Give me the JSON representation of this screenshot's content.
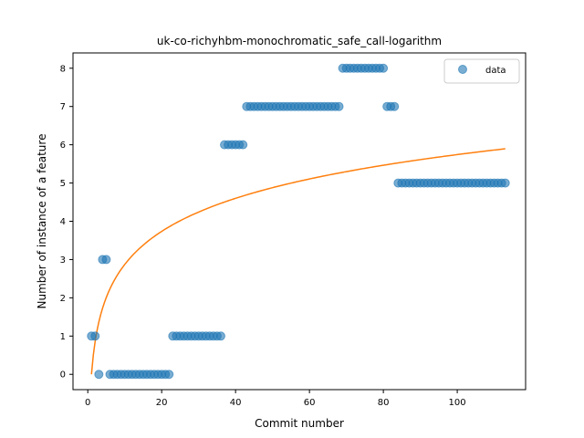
{
  "chart_data": {
    "type": "scatter",
    "title": "uk-co-richyhbm-monochromatic_safe_call-logarithm",
    "xlabel": "Commit number",
    "ylabel": "Number of instance of a feature",
    "xlim": [
      -4,
      118.5
    ],
    "ylim": [
      -0.4,
      8.4
    ],
    "xticks": [
      0,
      20,
      40,
      60,
      80,
      100
    ],
    "yticks": [
      0,
      1,
      2,
      3,
      4,
      5,
      6,
      7,
      8
    ],
    "legend": {
      "position": "top-right",
      "entries": [
        "data"
      ]
    },
    "grid": false,
    "colors": {
      "data": "#1f77b4",
      "fit": "#ff7f0e"
    },
    "series": [
      {
        "name": "data",
        "kind": "scatter",
        "runs": [
          {
            "x_start": 1,
            "x_end": 2,
            "y": 1
          },
          {
            "x_start": 3,
            "x_end": 3,
            "y": 0
          },
          {
            "x_start": 4,
            "x_end": 5,
            "y": 3
          },
          {
            "x_start": 6,
            "x_end": 22,
            "y": 0
          },
          {
            "x_start": 23,
            "x_end": 36,
            "y": 1
          },
          {
            "x_start": 37,
            "x_end": 42,
            "y": 6
          },
          {
            "x_start": 43,
            "x_end": 68,
            "y": 7
          },
          {
            "x_start": 69,
            "x_end": 80,
            "y": 8
          },
          {
            "x_start": 81,
            "x_end": 83,
            "y": 7
          },
          {
            "x_start": 84,
            "x_end": 113,
            "y": 5
          }
        ]
      },
      {
        "kind": "line",
        "function": "logarithmic",
        "coefficient": 1.247,
        "x_range": [
          1,
          113
        ]
      }
    ]
  }
}
